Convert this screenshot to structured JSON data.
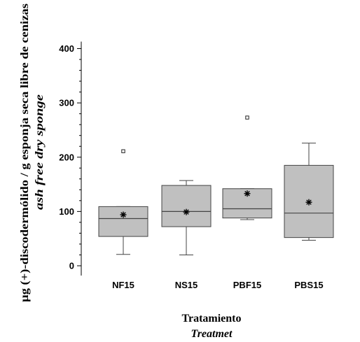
{
  "chart_data": {
    "type": "boxplot",
    "xlabel": "Tratamiento",
    "xlabel_en": "Treatmet",
    "ylabel": "µg (+)-discodermólido / g esponja seca libre de cenizas",
    "ylabel_en": "ash free dry sponge",
    "ylim": [
      0,
      400
    ],
    "yticks": [
      "0",
      "100",
      "200",
      "300",
      "400"
    ],
    "categories": [
      "NF15",
      "NS15",
      "PBF15",
      "PBS15"
    ],
    "boxes": [
      {
        "category": "NF15",
        "whisker_low": 21,
        "q1": 54,
        "median": 87,
        "q3": 109,
        "whisker_high": 109,
        "mean": 94,
        "outliers": [
          211
        ]
      },
      {
        "category": "NS15",
        "whisker_low": 20,
        "q1": 72,
        "median": 100,
        "q3": 148,
        "whisker_high": 157,
        "mean": 99,
        "outliers": []
      },
      {
        "category": "PBF15",
        "whisker_low": 85,
        "q1": 88,
        "median": 105,
        "q3": 142,
        "whisker_high": 142,
        "mean": 133,
        "outliers": [
          273
        ]
      },
      {
        "category": "PBS15",
        "whisker_low": 47,
        "q1": 52,
        "median": 97,
        "q3": 185,
        "whisker_high": 226,
        "mean": 117,
        "outliers": []
      }
    ],
    "colors": {
      "box_fill": "#c0c0c0",
      "box_stroke": "#444444",
      "axis": "#000000"
    },
    "grid": false,
    "legend": "none"
  }
}
